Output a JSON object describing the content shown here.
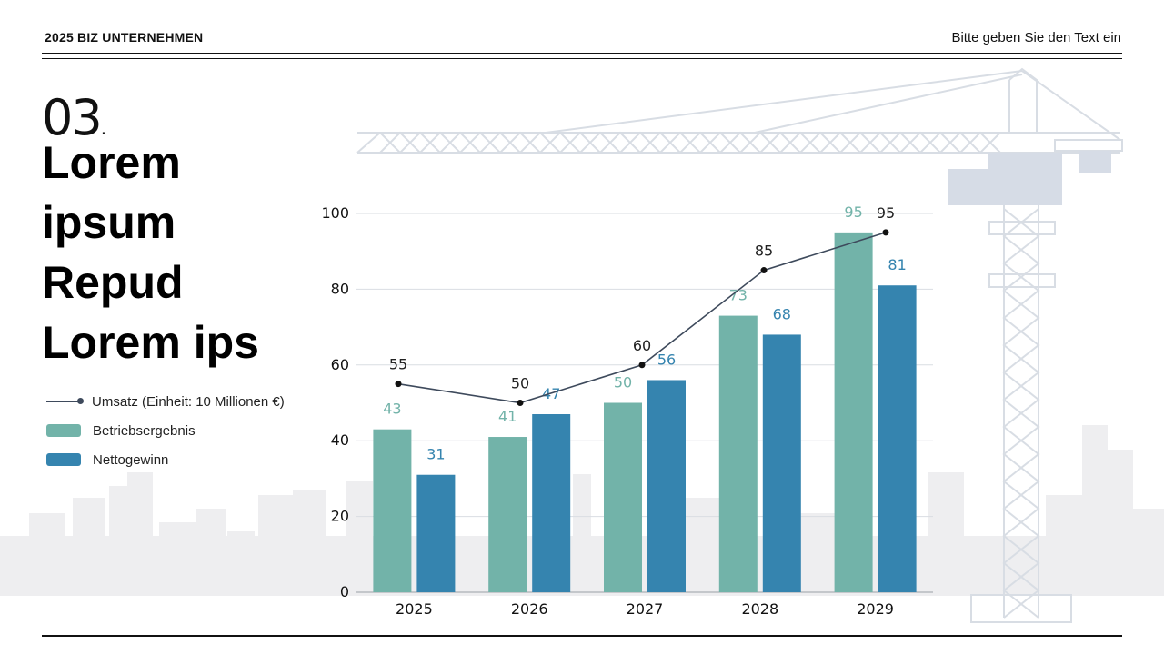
{
  "header": {
    "left": "2025 BIZ UNTERNEHMEN",
    "right": "Bitte geben Sie den Text ein"
  },
  "section": {
    "number": "03",
    "dot": "."
  },
  "title_lines": [
    "Lorem",
    "ipsum",
    "Repud",
    "Lorem ips"
  ],
  "legend": [
    {
      "label": "Umsatz (Einheit: 10 Millionen €)",
      "kind": "line",
      "color": "#3e4a5c"
    },
    {
      "label": "Betriebsergebnis",
      "kind": "bar",
      "color": "#72b3a9"
    },
    {
      "label": "Nettogewinn",
      "kind": "bar",
      "color": "#3584af"
    }
  ],
  "chart_data": {
    "type": "bar",
    "categories": [
      "2025",
      "2026",
      "2027",
      "2028",
      "2029"
    ],
    "ylim": [
      0,
      100
    ],
    "yticks": [
      0,
      20,
      40,
      60,
      80,
      100
    ],
    "grid": true,
    "series": [
      {
        "name": "Betriebsergebnis",
        "type": "bar",
        "color": "#72b3a9",
        "values": [
          43,
          41,
          50,
          73,
          95
        ]
      },
      {
        "name": "Nettogewinn",
        "type": "bar",
        "color": "#3584af",
        "values": [
          31,
          47,
          56,
          68,
          81
        ]
      },
      {
        "name": "Umsatz (Einheit: 10 Millionen €)",
        "type": "line",
        "color": "#3e4a5c",
        "values": [
          55,
          50,
          60,
          85,
          95
        ]
      }
    ]
  }
}
